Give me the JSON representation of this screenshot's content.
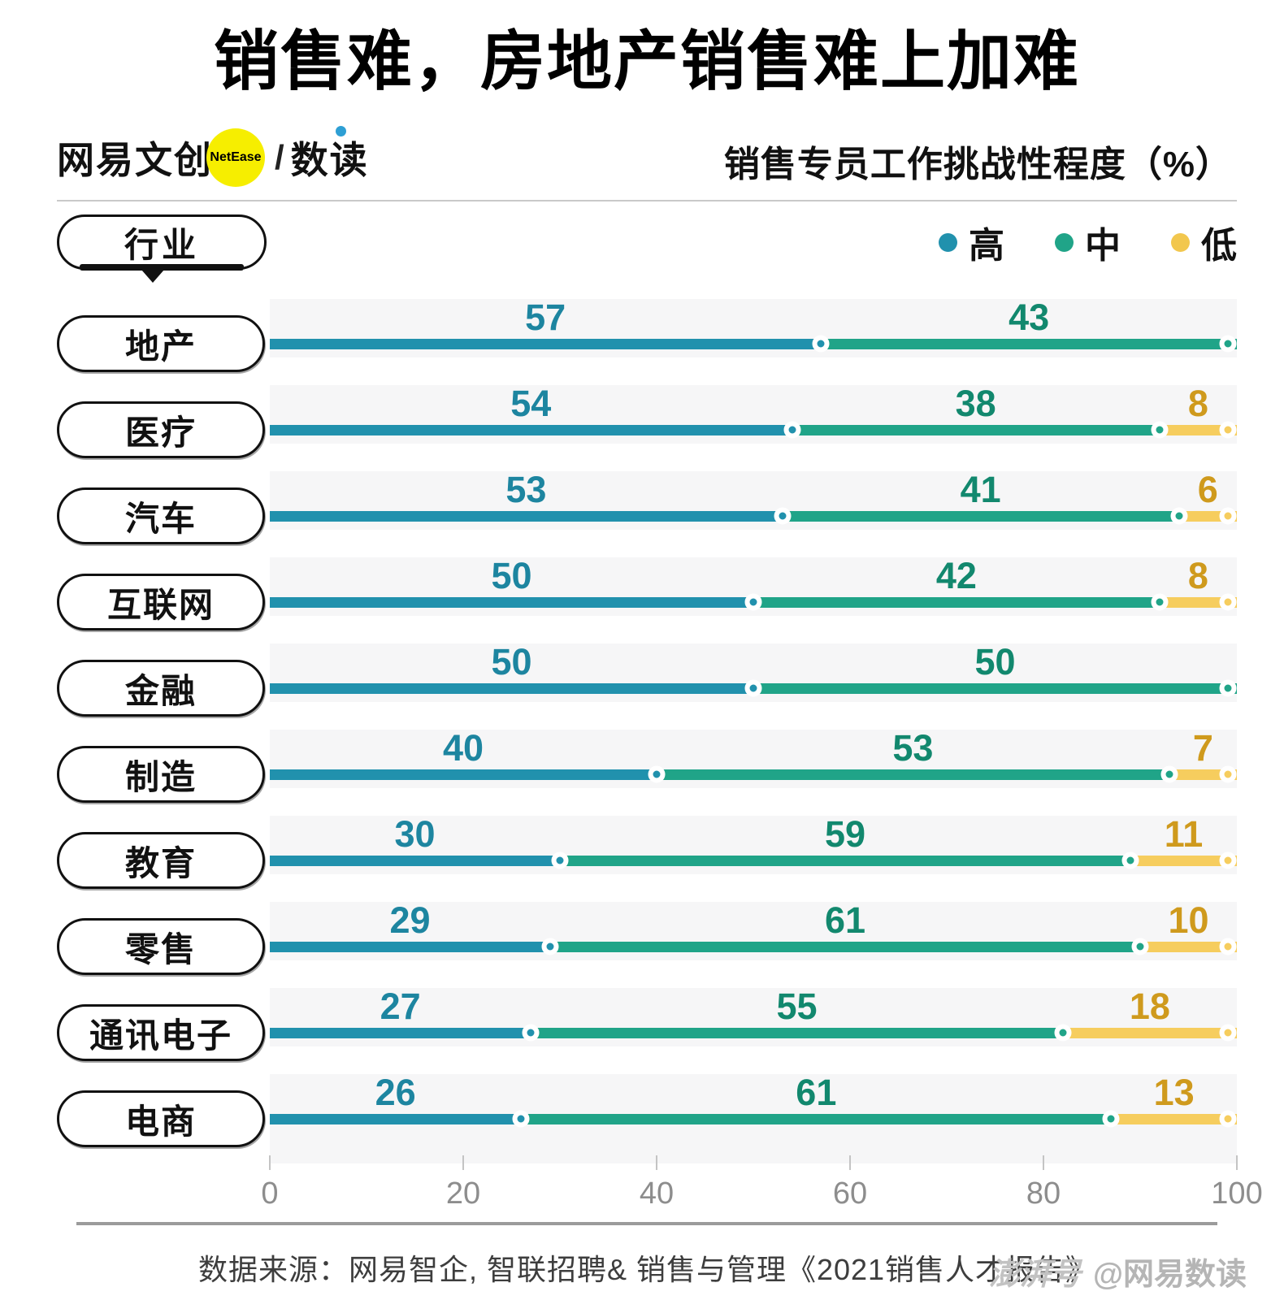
{
  "title": "销售难，房地产销售难上加难",
  "header": {
    "logo": {
      "brand": "网易文创",
      "badge": "NetEase",
      "separator": "/",
      "sub_brand": "数读"
    },
    "subtitle": "销售专员工作挑战性程度（%）"
  },
  "legend": {
    "axis_label": "行业",
    "items": [
      {
        "label": "高",
        "color": "#2191ad"
      },
      {
        "label": "中",
        "color": "#20a488"
      },
      {
        "label": "低",
        "color": "#f2c74e"
      }
    ]
  },
  "chart_data": {
    "type": "bar",
    "orientation": "horizontal",
    "stacked": true,
    "title": "销售难，房地产销售难上加难",
    "subtitle": "销售专员工作挑战性程度（%）",
    "unit": "%",
    "categories": [
      "地产",
      "医疗",
      "汽车",
      "互联网",
      "金融",
      "制造",
      "教育",
      "零售",
      "通讯电子",
      "电商"
    ],
    "series": [
      {
        "name": "高",
        "color": "#2191ad",
        "label_color": "#1d85a0",
        "values": [
          57,
          54,
          53,
          50,
          50,
          40,
          30,
          29,
          27,
          26
        ]
      },
      {
        "name": "中",
        "color": "#20a488",
        "label_color": "#12886e",
        "values": [
          43,
          38,
          41,
          42,
          50,
          53,
          59,
          61,
          55,
          61
        ]
      },
      {
        "name": "低",
        "color": "#f6cd5e",
        "label_color": "#cf9a1d",
        "values": [
          0,
          8,
          6,
          8,
          0,
          7,
          11,
          10,
          18,
          13
        ]
      }
    ],
    "xlim": [
      0,
      100
    ],
    "x_ticks": [
      0,
      20,
      40,
      60,
      80,
      100
    ],
    "legend_position": "top-right",
    "grid": false
  },
  "footer": {
    "source": "数据来源：网易智企, 智联招聘& 销售与管理《2021销售人才报告》",
    "watermark_logo": "澎湃号",
    "watermark_handle": "@网易数读"
  }
}
